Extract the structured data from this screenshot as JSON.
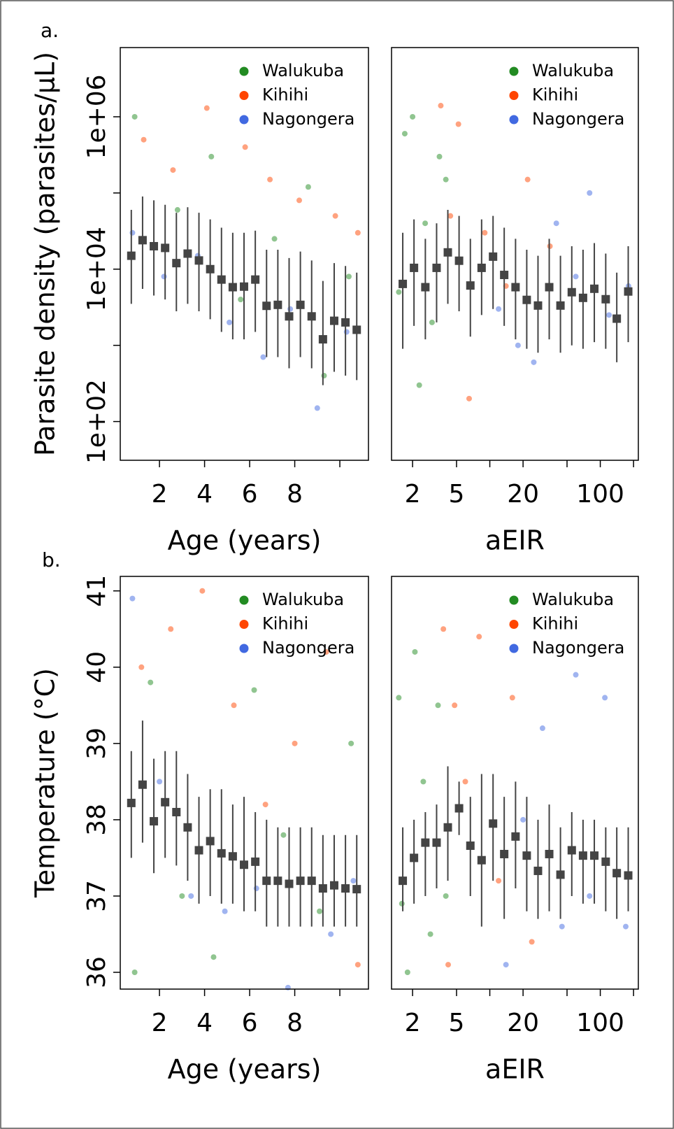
{
  "figure_labels": [
    "a.",
    "b."
  ],
  "chart_data": [
    {
      "type": "scatter",
      "ylabel": "Parasite density (parasites/μL)",
      "xlabel": "Age (years)",
      "xlim": [
        0.26,
        11.27
      ],
      "xticks": [
        2,
        4,
        6,
        8,
        {
          "value": 10,
          "label": null
        }
      ],
      "ylim": [
        31,
        8100000
      ],
      "ylog": true,
      "yticks": [
        {
          "value": 100,
          "label": "1e+02"
        },
        {
          "value": 1000,
          "label": null
        },
        {
          "value": 10000,
          "label": "1e+04"
        },
        {
          "value": 100000,
          "label": null
        },
        {
          "value": 1000000,
          "label": "1e+06"
        }
      ],
      "legend": "top-right",
      "series": [
        {
          "name": "Walukuba",
          "color": "#228b22",
          "x": [
            0.9,
            2.8,
            4.3,
            5.6,
            7.1,
            8.6,
            9.3,
            10.4
          ],
          "values": [
            1000000,
            60000,
            300000,
            4000,
            25000,
            120000,
            400,
            8000
          ]
        },
        {
          "name": "Kihihi",
          "color": "#ff4500",
          "x": [
            1.3,
            2.6,
            4.1,
            5.8,
            6.9,
            8.2,
            9.8,
            10.8
          ],
          "values": [
            500000,
            200000,
            1300000,
            400000,
            150000,
            80000,
            50000,
            30000
          ]
        },
        {
          "name": "Nagongera",
          "color": "#4169e1",
          "x": [
            0.8,
            2.2,
            3.7,
            5.1,
            6.6,
            7.8,
            9.0,
            10.3
          ],
          "values": [
            30000,
            8000,
            15000,
            2000,
            700,
            3000,
            150,
            1500
          ]
        }
      ],
      "summary": {
        "color": "#444444",
        "x": [
          0.75,
          1.25,
          1.75,
          2.25,
          2.75,
          3.25,
          3.75,
          4.25,
          4.75,
          5.25,
          5.75,
          6.25,
          6.75,
          7.25,
          7.75,
          8.25,
          8.75,
          9.25,
          9.75,
          10.25,
          10.75
        ],
        "values": [
          15000,
          24000,
          20000,
          19000,
          12000,
          16000,
          13000,
          10000,
          7300,
          5800,
          5900,
          7300,
          3300,
          3400,
          2400,
          3400,
          2400,
          1200,
          2100,
          2000,
          1600
        ],
        "lower": [
          3500,
          5500,
          4500,
          4000,
          2800,
          3500,
          2800,
          2200,
          1500,
          1200,
          1200,
          1500,
          700,
          700,
          500,
          700,
          500,
          300,
          450,
          400,
          350
        ],
        "upper": [
          60000,
          90000,
          80000,
          70000,
          55000,
          65000,
          55000,
          45000,
          35000,
          30000,
          30000,
          32000,
          18000,
          18000,
          14000,
          17000,
          13000,
          7000,
          12000,
          11000,
          9000
        ]
      }
    },
    {
      "type": "scatter",
      "xlabel": "aEIR",
      "xlim": [
        1.29,
        221
      ],
      "xlog": true,
      "xticks": [
        2,
        5,
        {
          "value": 10,
          "label": null
        },
        20,
        {
          "value": 50,
          "label": null
        },
        100,
        {
          "value": 200,
          "label": null
        }
      ],
      "ylim": [
        31,
        8100000
      ],
      "ylog": true,
      "legend": "top-right",
      "series": [
        {
          "name": "Walukuba",
          "color": "#228b22",
          "x": [
            1.5,
            1.7,
            2.0,
            2.3,
            2.6,
            3.0,
            3.5,
            4.0
          ],
          "values": [
            5000,
            600000,
            1000000,
            300,
            40000,
            2000,
            300000,
            150000
          ]
        },
        {
          "name": "Kihihi",
          "color": "#ff4500",
          "x": [
            3.6,
            4.4,
            5.2,
            6.5,
            9,
            14,
            22,
            35
          ],
          "values": [
            1400000,
            50000,
            800000,
            200,
            30000,
            6000,
            150000,
            20000
          ]
        },
        {
          "name": "Nagongera",
          "color": "#4169e1",
          "x": [
            12,
            18,
            25,
            40,
            60,
            80,
            120,
            180
          ],
          "values": [
            3000,
            1000,
            600,
            40000,
            8000,
            100000,
            2500,
            6000
          ]
        }
      ],
      "summary": {
        "color": "#444444",
        "x": [
          1.63,
          2.06,
          2.61,
          3.3,
          4.17,
          5.27,
          6.67,
          8.43,
          10.7,
          13.5,
          17.1,
          21.6,
          27.3,
          34.5,
          43.6,
          55.2,
          69.8,
          88.3,
          112,
          141,
          179
        ],
        "values": [
          6400,
          10400,
          5800,
          10400,
          16600,
          12900,
          6100,
          10400,
          14600,
          8400,
          5800,
          3950,
          3330,
          5800,
          3330,
          4980,
          4200,
          5530,
          4030,
          2240,
          5090
        ],
        "lower": [
          900,
          1800,
          1200,
          2000,
          3500,
          2800,
          1300,
          2500,
          3000,
          1800,
          1200,
          900,
          800,
          1200,
          800,
          1000,
          900,
          1100,
          900,
          600,
          1100
        ],
        "upper": [
          30000,
          45000,
          25000,
          40000,
          60000,
          50000,
          25000,
          45000,
          50000,
          35000,
          25000,
          18000,
          15000,
          25000,
          15000,
          20000,
          18000,
          22000,
          16000,
          9000,
          20000
        ]
      }
    },
    {
      "type": "scatter",
      "ylabel": "Temperature (°C)",
      "xlabel": "Age (years)",
      "xlim": [
        0.26,
        11.27
      ],
      "xticks": [
        2,
        4,
        6,
        8,
        {
          "value": 10,
          "label": null
        }
      ],
      "ylim": [
        35.78,
        41.19
      ],
      "yticks": [
        36,
        37,
        38,
        39,
        40,
        41
      ],
      "legend": "top-right",
      "series": [
        {
          "name": "Walukuba",
          "color": "#228b22",
          "x": [
            0.9,
            1.6,
            3.0,
            4.4,
            6.2,
            7.5,
            9.1,
            10.5
          ],
          "values": [
            36.0,
            39.8,
            37.0,
            36.2,
            39.7,
            37.8,
            36.8,
            39.0
          ]
        },
        {
          "name": "Kihihi",
          "color": "#ff4500",
          "x": [
            1.2,
            2.5,
            3.9,
            5.3,
            6.7,
            8.0,
            9.4,
            10.8
          ],
          "values": [
            40.0,
            40.5,
            41.0,
            39.5,
            38.2,
            39.0,
            40.2,
            36.1
          ]
        },
        {
          "name": "Nagongera",
          "color": "#4169e1",
          "x": [
            0.8,
            2.0,
            3.4,
            4.9,
            6.3,
            7.7,
            9.6,
            10.6
          ],
          "values": [
            40.9,
            38.5,
            37.0,
            36.8,
            37.1,
            35.8,
            36.5,
            37.2
          ]
        }
      ],
      "summary": {
        "color": "#444444",
        "x": [
          0.75,
          1.25,
          1.75,
          2.25,
          2.75,
          3.25,
          3.75,
          4.25,
          4.75,
          5.25,
          5.75,
          6.25,
          6.75,
          7.25,
          7.75,
          8.25,
          8.75,
          9.25,
          9.75,
          10.25,
          10.75
        ],
        "values": [
          38.22,
          38.46,
          37.98,
          38.23,
          38.1,
          37.9,
          37.6,
          37.72,
          37.56,
          37.52,
          37.41,
          37.45,
          37.2,
          37.2,
          37.16,
          37.2,
          37.2,
          37.1,
          37.14,
          37.1,
          37.09
        ],
        "lower": [
          37.5,
          37.7,
          37.3,
          37.5,
          37.4,
          37.2,
          36.9,
          37.0,
          36.9,
          36.9,
          36.8,
          36.8,
          36.6,
          36.6,
          36.6,
          36.6,
          36.6,
          36.6,
          36.6,
          36.6,
          36.6
        ],
        "upper": [
          38.9,
          39.3,
          38.8,
          38.9,
          38.9,
          38.6,
          38.3,
          38.4,
          38.4,
          38.2,
          38.3,
          38.1,
          38.0,
          37.9,
          37.9,
          37.9,
          37.9,
          37.8,
          37.8,
          37.8,
          37.8
        ]
      }
    },
    {
      "type": "scatter",
      "xlabel": "aEIR",
      "xlim": [
        1.29,
        221
      ],
      "xlog": true,
      "xticks": [
        2,
        5,
        {
          "value": 10,
          "label": null
        },
        20,
        {
          "value": 50,
          "label": null
        },
        100,
        {
          "value": 200,
          "label": null
        }
      ],
      "ylim": [
        35.78,
        41.19
      ],
      "legend": "top-right",
      "series": [
        {
          "name": "Walukuba",
          "color": "#228b22",
          "x": [
            1.5,
            1.8,
            2.1,
            2.5,
            2.9,
            3.4,
            4.0,
            1.6
          ],
          "values": [
            39.6,
            36.0,
            40.2,
            38.5,
            36.5,
            39.5,
            37.0,
            36.9
          ]
        },
        {
          "name": "Kihihi",
          "color": "#ff4500",
          "x": [
            3.8,
            4.2,
            4.8,
            6.0,
            8.0,
            12,
            16,
            24
          ],
          "values": [
            40.5,
            36.1,
            39.5,
            38.5,
            40.4,
            37.2,
            39.6,
            36.4
          ]
        },
        {
          "name": "Nagongera",
          "color": "#4169e1",
          "x": [
            14,
            20,
            30,
            45,
            60,
            80,
            110,
            170
          ],
          "values": [
            36.1,
            38.0,
            39.2,
            36.6,
            39.9,
            37.0,
            39.6,
            36.6
          ]
        }
      ],
      "summary": {
        "color": "#444444",
        "x": [
          1.63,
          2.06,
          2.61,
          3.3,
          4.17,
          5.27,
          6.67,
          8.43,
          10.7,
          13.5,
          17.1,
          21.6,
          27.3,
          34.5,
          43.6,
          55.2,
          69.8,
          88.3,
          112,
          141,
          179
        ],
        "values": [
          37.2,
          37.5,
          37.7,
          37.7,
          37.9,
          38.15,
          37.66,
          37.47,
          37.95,
          37.55,
          37.78,
          37.53,
          37.33,
          37.55,
          37.28,
          37.6,
          37.53,
          37.53,
          37.45,
          37.3,
          37.27
        ],
        "lower": [
          36.8,
          36.9,
          37.0,
          37.1,
          37.2,
          37.8,
          37.0,
          36.6,
          37.2,
          36.7,
          37.1,
          36.8,
          36.7,
          36.8,
          36.7,
          37.0,
          36.9,
          36.9,
          36.8,
          36.7,
          36.8
        ],
        "upper": [
          37.9,
          38.0,
          38.1,
          38.2,
          38.7,
          38.5,
          38.3,
          38.6,
          38.6,
          38.3,
          38.5,
          38.3,
          38.0,
          38.2,
          37.9,
          38.1,
          38.0,
          38.0,
          37.9,
          37.9,
          37.9
        ]
      }
    }
  ]
}
